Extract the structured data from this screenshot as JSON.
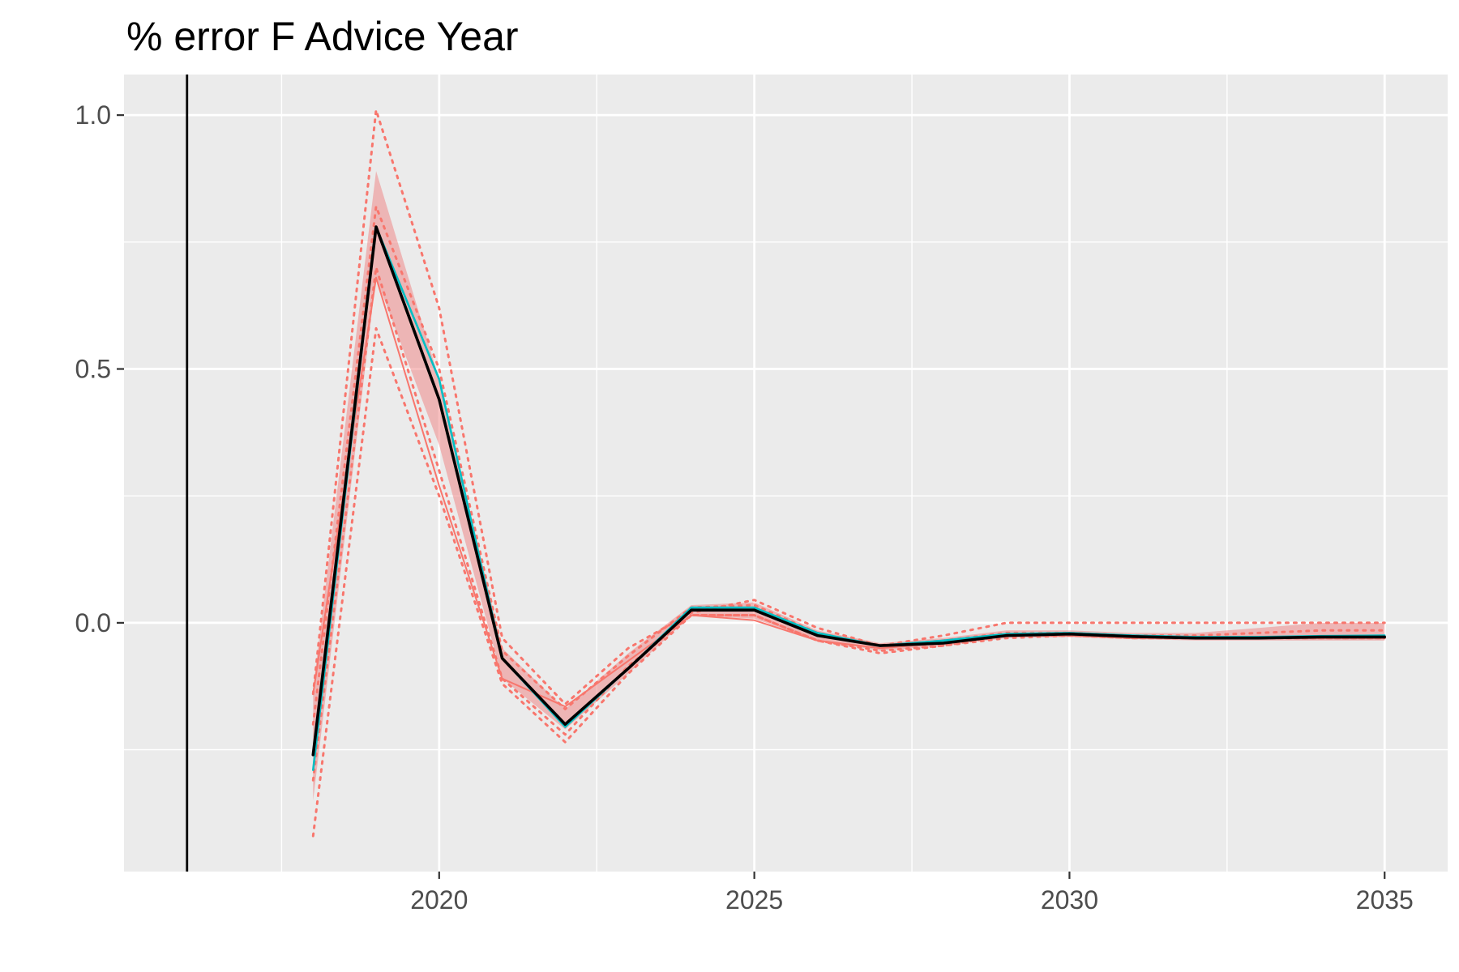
{
  "chart_data": {
    "type": "line",
    "title": "% error F Advice Year",
    "xlabel": "",
    "ylabel": "",
    "xlim": [
      2015.0,
      2036.0
    ],
    "ylim": [
      -0.49,
      1.08
    ],
    "x_ticks": [
      2020,
      2025,
      2030,
      2035
    ],
    "x_tick_labels": [
      "2020",
      "2025",
      "2030",
      "2035"
    ],
    "y_ticks": [
      0.0,
      0.5,
      1.0
    ],
    "y_tick_labels": [
      "0.0",
      "0.5",
      "1.0"
    ],
    "grid": true,
    "legend": "none",
    "vline_x": 2016,
    "x": [
      2018,
      2019,
      2020,
      2021,
      2022,
      2023,
      2024,
      2025,
      2026,
      2027,
      2028,
      2029,
      2030,
      2031,
      2032,
      2033,
      2034,
      2035
    ],
    "series": [
      {
        "role": "ribbon",
        "color": "#F08080",
        "opacity": 0.5,
        "lower": [
          -0.35,
          0.68,
          0.35,
          -0.11,
          -0.21,
          -0.1,
          0.015,
          0.008,
          -0.035,
          -0.055,
          -0.045,
          -0.03,
          -0.028,
          -0.032,
          -0.035,
          -0.035,
          -0.035,
          -0.035
        ],
        "upper": [
          -0.13,
          0.89,
          0.48,
          -0.05,
          -0.17,
          -0.06,
          0.035,
          0.04,
          -0.015,
          -0.04,
          -0.03,
          -0.015,
          -0.015,
          -0.02,
          -0.02,
          -0.01,
          0.0,
          0.0
        ]
      },
      {
        "role": "quantile-outer-upper",
        "color": "#F8766D",
        "dash": "dotted",
        "values": [
          -0.14,
          1.01,
          0.62,
          -0.03,
          -0.16,
          -0.05,
          0.02,
          0.045,
          -0.01,
          -0.045,
          -0.025,
          0.0,
          0.0,
          0.0,
          0.0,
          0.0,
          0.0,
          0.0
        ]
      },
      {
        "role": "quantile-outer-lower",
        "color": "#F8766D",
        "dash": "dotted",
        "values": [
          -0.42,
          0.58,
          0.25,
          -0.12,
          -0.235,
          -0.1,
          0.015,
          0.015,
          -0.035,
          -0.06,
          -0.045,
          -0.03,
          -0.025,
          -0.03,
          -0.03,
          -0.03,
          -0.03,
          -0.03
        ]
      },
      {
        "role": "quantile-inner-upper",
        "color": "#F8766D",
        "dash": "dotted",
        "values": [
          -0.2,
          0.82,
          0.5,
          -0.055,
          -0.17,
          -0.065,
          0.03,
          0.035,
          -0.02,
          -0.045,
          -0.035,
          -0.02,
          -0.02,
          -0.025,
          -0.025,
          -0.02,
          -0.015,
          -0.015
        ]
      },
      {
        "role": "quantile-inner-lower",
        "color": "#F8766D",
        "dash": "dotted",
        "values": [
          -0.31,
          0.7,
          0.3,
          -0.11,
          -0.22,
          -0.085,
          0.015,
          0.015,
          -0.035,
          -0.055,
          -0.045,
          -0.025,
          -0.025,
          -0.03,
          -0.03,
          -0.03,
          -0.03,
          -0.03
        ]
      },
      {
        "role": "lower-solid",
        "color": "#F8766D",
        "dash": "solid",
        "values": [
          -0.14,
          0.68,
          0.27,
          -0.11,
          -0.165,
          -0.075,
          0.015,
          0.005,
          -0.035,
          -0.05,
          -0.04,
          -0.025,
          -0.025,
          -0.03,
          -0.03,
          -0.03,
          -0.03,
          -0.03
        ]
      },
      {
        "role": "teal-line",
        "color": "#00BFC4",
        "dash": "solid",
        "values": [
          -0.29,
          0.78,
          0.48,
          -0.07,
          -0.205,
          -0.09,
          0.03,
          0.03,
          -0.02,
          -0.045,
          -0.035,
          -0.022,
          -0.02,
          -0.025,
          -0.028,
          -0.028,
          -0.026,
          -0.025
        ]
      },
      {
        "role": "median-line",
        "color": "#000000",
        "dash": "solid",
        "values": [
          -0.26,
          0.78,
          0.44,
          -0.07,
          -0.2,
          -0.09,
          0.025,
          0.025,
          -0.025,
          -0.045,
          -0.04,
          -0.025,
          -0.022,
          -0.027,
          -0.03,
          -0.03,
          -0.028,
          -0.028
        ]
      }
    ]
  }
}
